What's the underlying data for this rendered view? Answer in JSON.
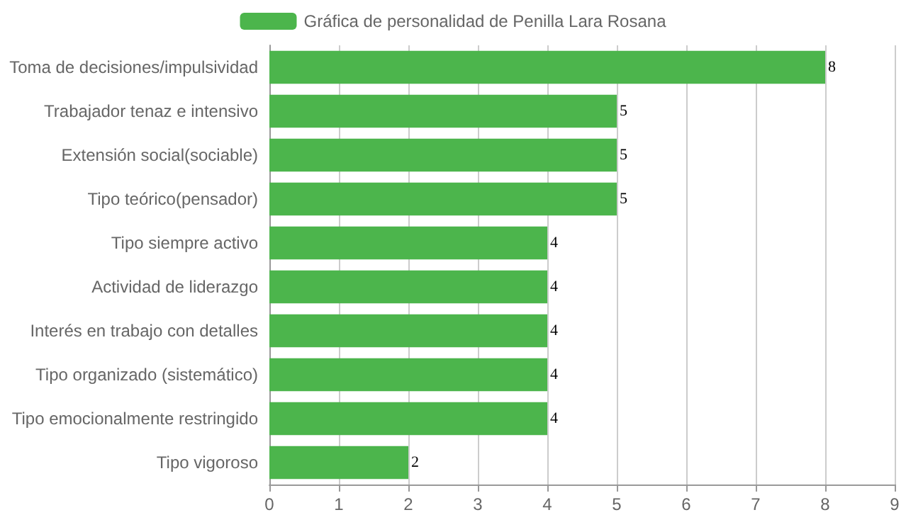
{
  "chart_data": {
    "type": "bar",
    "orientation": "horizontal",
    "categories": [
      "Toma de decisiones/impulsividad",
      "Trabajador tenaz e intensivo",
      "Extensión social(sociable)",
      "Tipo teórico(pensador)",
      "Tipo siempre activo",
      "Actividad de liderazgo",
      "Interés en trabajo con detalles",
      "Tipo organizado (sistemático)",
      "Tipo emocionalmente restringido",
      "Tipo vigoroso"
    ],
    "series": [
      {
        "name": "Gráfica de personalidad de Penilla Lara Rosana",
        "color": "#4cb54c",
        "values": [
          8,
          5,
          5,
          5,
          4,
          4,
          4,
          4,
          4,
          2
        ]
      }
    ],
    "xlim": [
      0,
      9
    ],
    "xticks": [
      0,
      1,
      2,
      3,
      4,
      5,
      6,
      7,
      8,
      9
    ],
    "grid": "x",
    "legend": "top",
    "data_labels": true
  }
}
